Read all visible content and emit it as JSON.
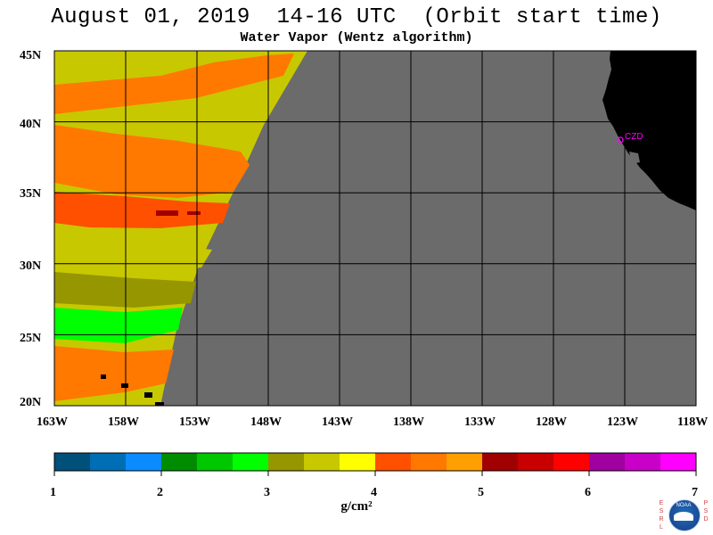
{
  "title": "August 01, 2019  14-16 UTC  (Orbit start time)",
  "subtitle": "Water Vapor (Wentz algorithm)",
  "map": {
    "lon_range": [
      -163,
      -118
    ],
    "lat_range": [
      20,
      45
    ],
    "lat_labels": [
      "45N",
      "40N",
      "35N",
      "30N",
      "25N",
      "20N"
    ],
    "lon_labels": [
      "163W",
      "158W",
      "153W",
      "148W",
      "143W",
      "138W",
      "133W",
      "128W",
      "123W",
      "118W"
    ],
    "station_label": "CZD",
    "colors": {
      "no_data": "#6b6b6b",
      "land": "#000000",
      "grid": "#000000",
      "station": "#ff00ff"
    }
  },
  "colorbar": {
    "ticks": [
      "1",
      "2",
      "3",
      "4",
      "5",
      "6",
      "7"
    ],
    "unit": "g/cm²",
    "colors": [
      "#00507a",
      "#006eb4",
      "#0a8cff",
      "#008c00",
      "#00c800",
      "#00ff00",
      "#969600",
      "#c8c800",
      "#ffff00",
      "#ff5000",
      "#ff7800",
      "#ffa000",
      "#a00000",
      "#c80000",
      "#ff0000",
      "#a000a0",
      "#c800c8",
      "#ff00ff"
    ]
  },
  "logo": {
    "left_letters": [
      "E",
      "S",
      "R",
      "L"
    ],
    "right_letters": [
      "P",
      "S",
      "D"
    ],
    "seal_text": "NOAA"
  }
}
